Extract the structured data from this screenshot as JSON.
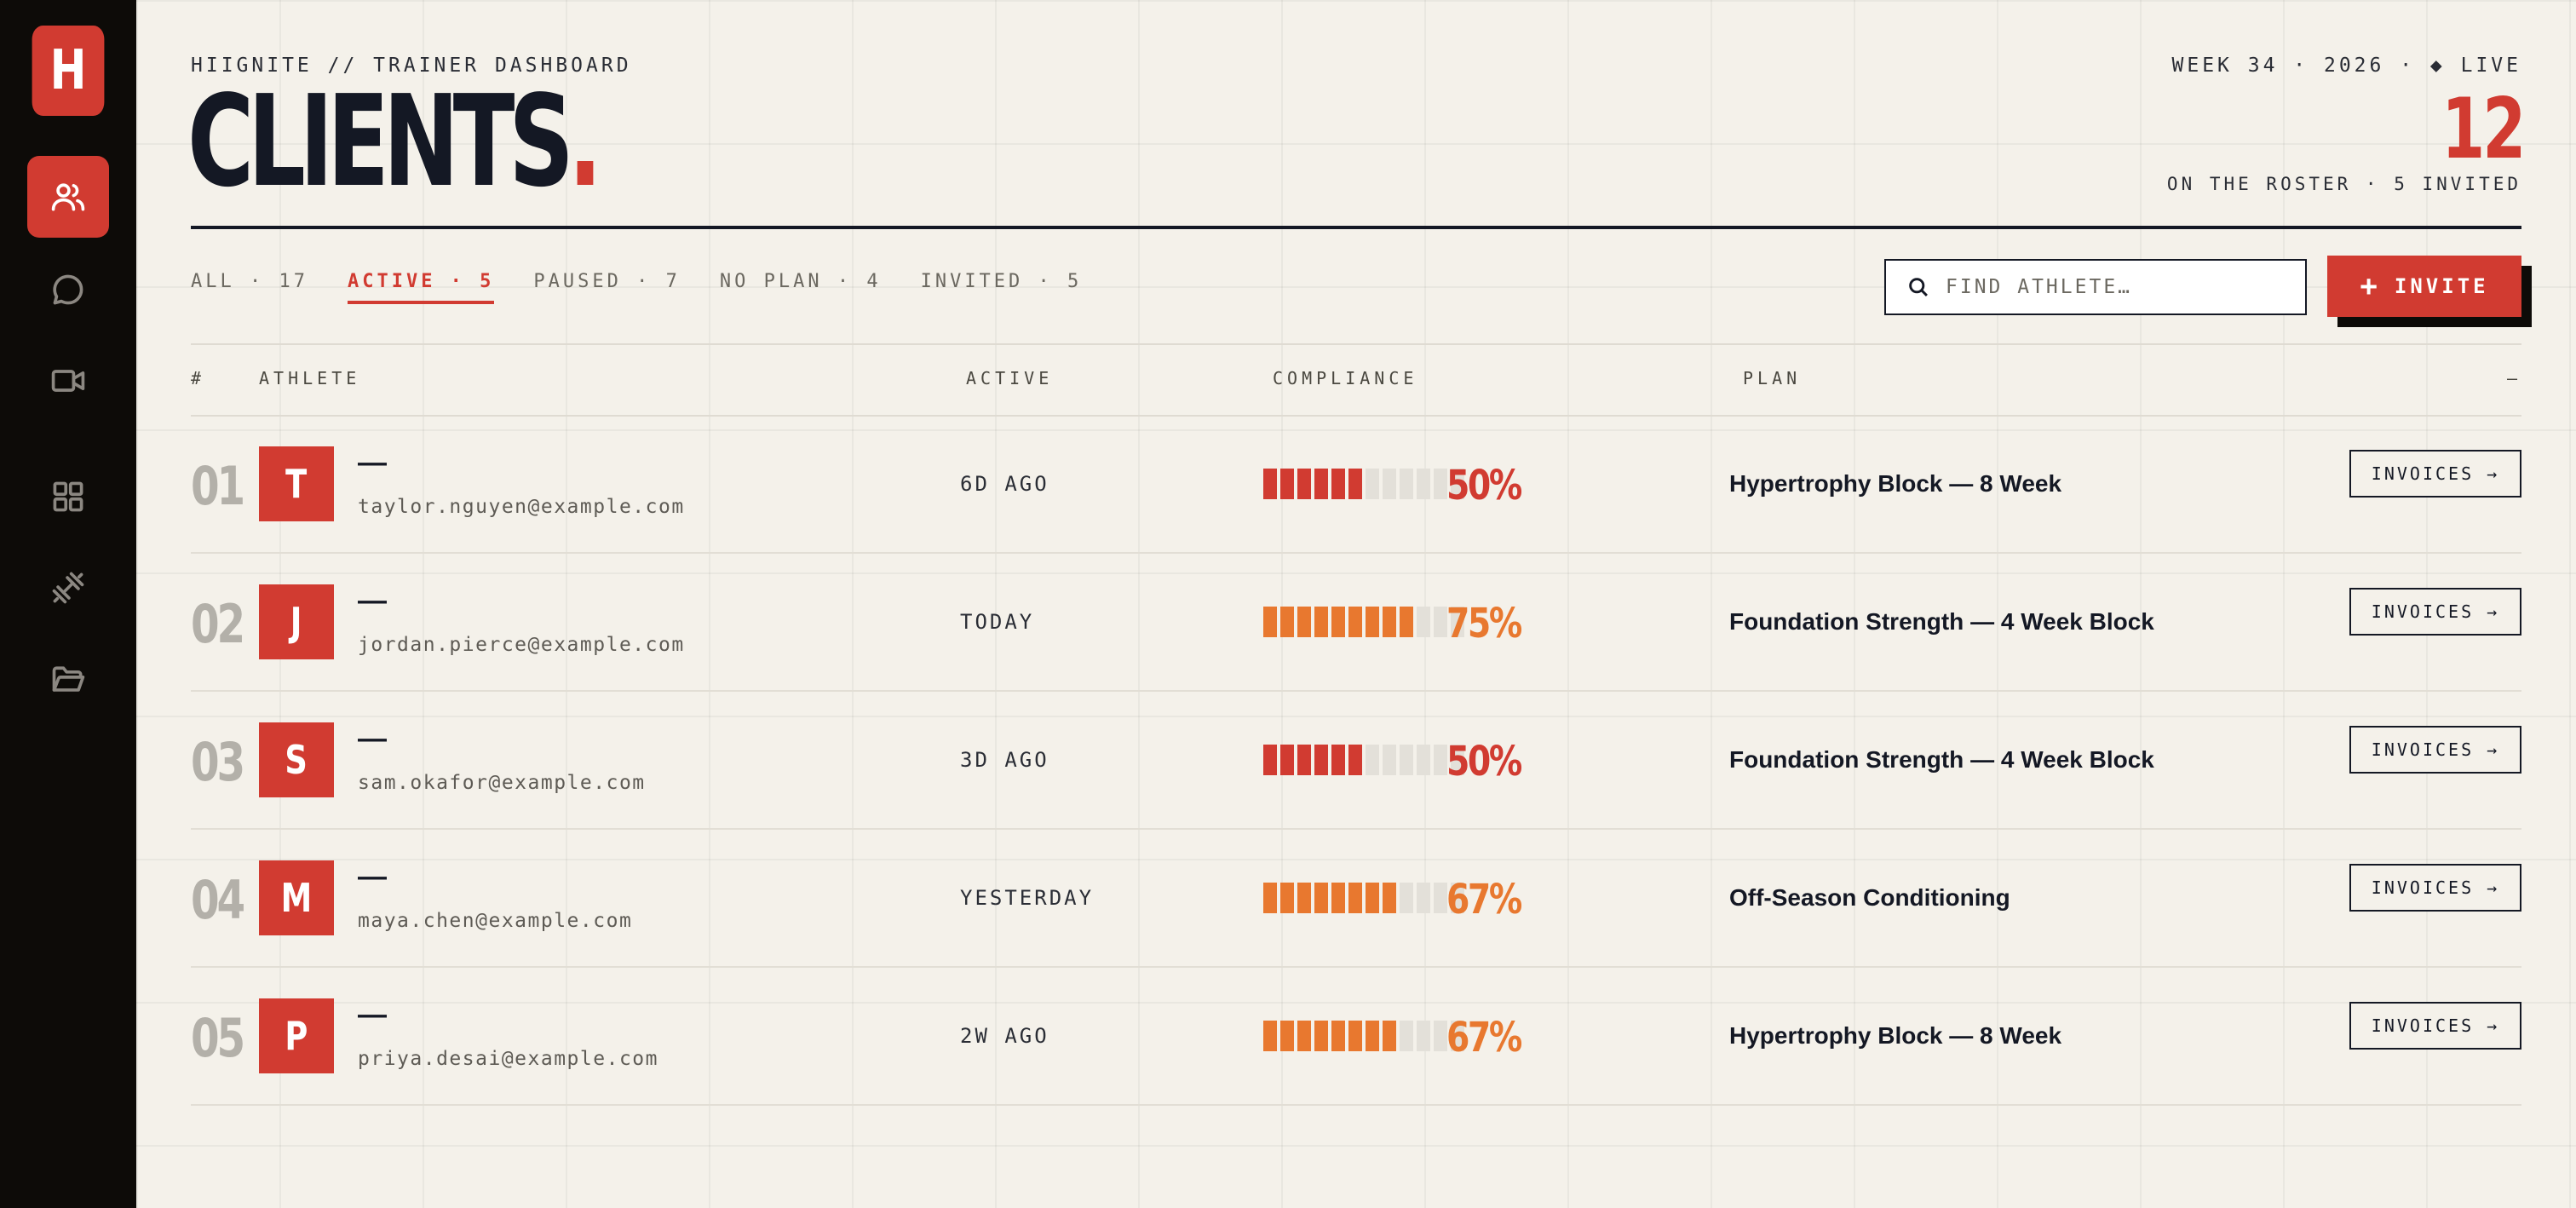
{
  "brand": {
    "logo_letter": "H"
  },
  "nav": [
    {
      "id": "clients",
      "icon": "users-icon",
      "active": true
    },
    {
      "id": "messages",
      "icon": "chat-bubble-icon",
      "active": false
    },
    {
      "id": "video",
      "icon": "video-camera-icon",
      "active": false
    },
    {
      "id": "programs",
      "icon": "grid-icon",
      "active": false
    },
    {
      "id": "exercises",
      "icon": "dumbbell-icon",
      "active": false
    },
    {
      "id": "files",
      "icon": "folder-open-icon",
      "active": false
    }
  ],
  "header": {
    "eyebrow": "HIIGNITE // TRAINER DASHBOARD",
    "title": "CLIENTS",
    "title_dot": ".",
    "week": "WEEK 34 · 2026 · ◆ LIVE",
    "count": "12",
    "roster": "ON THE ROSTER · 5 INVITED"
  },
  "tabs": [
    {
      "label": "ALL · 17",
      "active": false
    },
    {
      "label": "ACTIVE · 5",
      "active": true
    },
    {
      "label": "PAUSED · 7",
      "active": false
    },
    {
      "label": "NO PLAN · 4",
      "active": false
    },
    {
      "label": "INVITED · 5",
      "active": false
    }
  ],
  "search": {
    "placeholder": "FIND ATHLETE…"
  },
  "invite": {
    "plus": "+",
    "label": "INVITE"
  },
  "table": {
    "headers": {
      "num": "#",
      "athlete": "ATHLETE",
      "active": "ACTIVE",
      "compliance": "COMPLIANCE",
      "plan": "PLAN",
      "actions": "—"
    },
    "rows": [
      {
        "num": "01",
        "initial": "T",
        "name": "—",
        "email": "taylor.nguyen@example.com",
        "active": "6D AGO",
        "compliance": 0.5,
        "pct": "50%",
        "level": "low",
        "plan": "Hypertrophy Block — 8 Week",
        "action": "INVOICES →"
      },
      {
        "num": "02",
        "initial": "J",
        "name": "—",
        "email": "jordan.pierce@example.com",
        "active": "TODAY",
        "compliance": 0.75,
        "pct": "75%",
        "level": "mid",
        "plan": "Foundation Strength — 4 Week Block",
        "action": "INVOICES →"
      },
      {
        "num": "03",
        "initial": "S",
        "name": "—",
        "email": "sam.okafor@example.com",
        "active": "3D AGO",
        "compliance": 0.5,
        "pct": "50%",
        "level": "low",
        "plan": "Foundation Strength — 4 Week Block",
        "action": "INVOICES →"
      },
      {
        "num": "04",
        "initial": "M",
        "name": "—",
        "email": "maya.chen@example.com",
        "active": "YESTERDAY",
        "compliance": 0.67,
        "pct": "67%",
        "level": "mid",
        "plan": "Off-Season Conditioning",
        "action": "INVOICES →"
      },
      {
        "num": "05",
        "initial": "P",
        "name": "—",
        "email": "priya.desai@example.com",
        "active": "2W AGO",
        "compliance": 0.67,
        "pct": "67%",
        "level": "mid",
        "plan": "Hypertrophy Block — 8 Week",
        "action": "INVOICES →"
      }
    ]
  },
  "colors": {
    "accent": "#d13b31",
    "low": "#d13b31",
    "mid": "#e8782f",
    "empty": "#e3e0d9",
    "ink": "#141824"
  }
}
